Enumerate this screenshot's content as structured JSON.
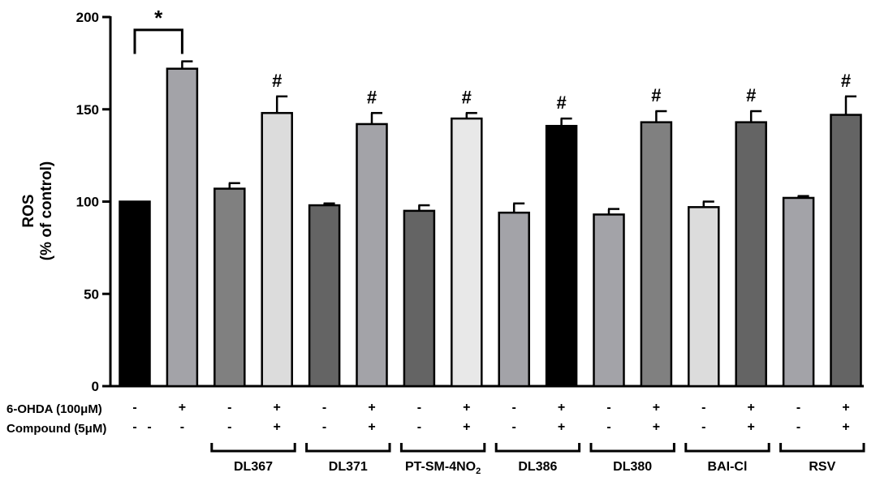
{
  "chart_data": {
    "type": "bar",
    "ylabel_line1": "ROS",
    "ylabel_line2": "(% of control)",
    "ylim": [
      0,
      200
    ],
    "yticks": [
      0,
      50,
      100,
      150,
      200
    ],
    "grid": false,
    "bars": [
      {
        "value": 100,
        "error": 0,
        "fill": "#000000",
        "sig": ""
      },
      {
        "value": 172,
        "error": 4,
        "fill": "#a3a3a8",
        "sig": ""
      },
      {
        "value": 107,
        "error": 3,
        "fill": "#808080",
        "sig": ""
      },
      {
        "value": 148,
        "error": 9,
        "fill": "#dcdcdc",
        "sig": "#"
      },
      {
        "value": 98,
        "error": 1,
        "fill": "#646464",
        "sig": ""
      },
      {
        "value": 142,
        "error": 6,
        "fill": "#a3a3a8",
        "sig": "#"
      },
      {
        "value": 95,
        "error": 3,
        "fill": "#646464",
        "sig": ""
      },
      {
        "value": 145,
        "error": 3,
        "fill": "#e8e8e8",
        "sig": "#"
      },
      {
        "value": 94,
        "error": 5,
        "fill": "#a3a3a8",
        "sig": ""
      },
      {
        "value": 141,
        "error": 4,
        "fill": "#000000",
        "sig": "#"
      },
      {
        "value": 93,
        "error": 3,
        "fill": "#a3a3a8",
        "sig": ""
      },
      {
        "value": 143,
        "error": 6,
        "fill": "#808080",
        "sig": "#"
      },
      {
        "value": 97,
        "error": 3,
        "fill": "#dcdcdc",
        "sig": ""
      },
      {
        "value": 143,
        "error": 6,
        "fill": "#646464",
        "sig": "#"
      },
      {
        "value": 102,
        "error": 1,
        "fill": "#a3a3a8",
        "sig": ""
      },
      {
        "value": 147,
        "error": 10,
        "fill": "#646464",
        "sig": "#"
      }
    ],
    "significance_bracket": {
      "from": 0,
      "to": 1,
      "label": "*"
    },
    "row1_label": "6-OHDA (100μM)",
    "row2_label": "Compound (5μM)",
    "row1_signs": [
      "-",
      "+",
      "-",
      "+",
      "-",
      "+",
      "-",
      "+",
      "-",
      "+",
      "-",
      "+",
      "-",
      "+",
      "-",
      "+"
    ],
    "row2_signs": [
      "-",
      "-",
      "-",
      "+",
      "-",
      "+",
      "-",
      "+",
      "-",
      "+",
      "-",
      "+",
      "-",
      "+",
      "-",
      "+"
    ],
    "groups": [
      "DL367",
      "DL371",
      "PT-SM-4NO",
      "DL386",
      "DL380",
      "BAI-Cl",
      "RSV"
    ],
    "group3_subscript": "2"
  }
}
